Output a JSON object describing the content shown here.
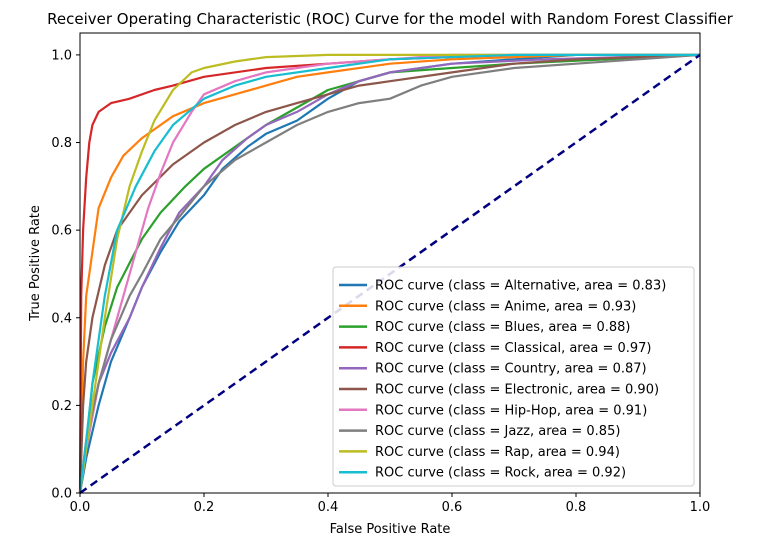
{
  "chart_data": {
    "type": "line",
    "title": "Receiver Operating Characteristic (ROC) Curve for the model with Random Forest Classifier",
    "xlabel": "False Positive Rate",
    "ylabel": "True Positive Rate",
    "xlim": [
      0.0,
      1.0
    ],
    "ylim": [
      0.0,
      1.05
    ],
    "x_ticks": [
      "0.0",
      "0.2",
      "0.4",
      "0.6",
      "0.8",
      "1.0"
    ],
    "y_ticks": [
      "0.0",
      "0.2",
      "0.4",
      "0.6",
      "0.8",
      "1.0"
    ],
    "grid": false,
    "legend_position": "lower-right",
    "diagonal": {
      "color": "#000080",
      "style": "dashed",
      "points": [
        [
          0,
          0
        ],
        [
          1,
          1
        ]
      ]
    },
    "series": [
      {
        "name": "ROC curve (class = Alternative, area = 0.83)",
        "color": "#1f77b4",
        "points": [
          [
            0,
            0
          ],
          [
            0.01,
            0.08
          ],
          [
            0.03,
            0.2
          ],
          [
            0.05,
            0.3
          ],
          [
            0.08,
            0.4
          ],
          [
            0.1,
            0.47
          ],
          [
            0.13,
            0.55
          ],
          [
            0.16,
            0.62
          ],
          [
            0.2,
            0.68
          ],
          [
            0.23,
            0.74
          ],
          [
            0.27,
            0.79
          ],
          [
            0.3,
            0.82
          ],
          [
            0.35,
            0.85
          ],
          [
            0.4,
            0.9
          ],
          [
            0.45,
            0.94
          ],
          [
            0.5,
            0.96
          ],
          [
            0.6,
            0.98
          ],
          [
            0.7,
            0.99
          ],
          [
            0.8,
            1.0
          ],
          [
            1,
            1
          ]
        ]
      },
      {
        "name": "ROC curve (class = Anime, area = 0.93)",
        "color": "#ff7f0e",
        "points": [
          [
            0,
            0
          ],
          [
            0.005,
            0.3
          ],
          [
            0.01,
            0.45
          ],
          [
            0.02,
            0.55
          ],
          [
            0.03,
            0.65
          ],
          [
            0.05,
            0.72
          ],
          [
            0.07,
            0.77
          ],
          [
            0.1,
            0.81
          ],
          [
            0.15,
            0.86
          ],
          [
            0.2,
            0.89
          ],
          [
            0.25,
            0.91
          ],
          [
            0.3,
            0.93
          ],
          [
            0.35,
            0.95
          ],
          [
            0.4,
            0.96
          ],
          [
            0.5,
            0.98
          ],
          [
            0.6,
            0.99
          ],
          [
            0.8,
            1.0
          ],
          [
            1,
            1
          ]
        ]
      },
      {
        "name": "ROC curve (class = Blues, area = 0.88)",
        "color": "#2ca02c",
        "points": [
          [
            0,
            0
          ],
          [
            0.01,
            0.1
          ],
          [
            0.02,
            0.25
          ],
          [
            0.04,
            0.38
          ],
          [
            0.06,
            0.47
          ],
          [
            0.1,
            0.58
          ],
          [
            0.13,
            0.64
          ],
          [
            0.17,
            0.7
          ],
          [
            0.2,
            0.74
          ],
          [
            0.25,
            0.79
          ],
          [
            0.3,
            0.84
          ],
          [
            0.35,
            0.88
          ],
          [
            0.4,
            0.92
          ],
          [
            0.45,
            0.94
          ],
          [
            0.5,
            0.96
          ],
          [
            0.6,
            0.97
          ],
          [
            0.7,
            0.98
          ],
          [
            0.85,
            0.99
          ],
          [
            1,
            1
          ]
        ]
      },
      {
        "name": "ROC curve (class = Classical, area = 0.97)",
        "color": "#d62728",
        "points": [
          [
            0,
            0
          ],
          [
            0.002,
            0.45
          ],
          [
            0.005,
            0.6
          ],
          [
            0.01,
            0.72
          ],
          [
            0.015,
            0.8
          ],
          [
            0.02,
            0.84
          ],
          [
            0.03,
            0.87
          ],
          [
            0.05,
            0.89
          ],
          [
            0.08,
            0.9
          ],
          [
            0.12,
            0.92
          ],
          [
            0.15,
            0.93
          ],
          [
            0.2,
            0.95
          ],
          [
            0.3,
            0.97
          ],
          [
            0.4,
            0.98
          ],
          [
            0.5,
            0.99
          ],
          [
            0.7,
            1.0
          ],
          [
            1,
            1
          ]
        ]
      },
      {
        "name": "ROC curve (class = Country, area = 0.87)",
        "color": "#9467bd",
        "points": [
          [
            0,
            0
          ],
          [
            0.01,
            0.1
          ],
          [
            0.03,
            0.25
          ],
          [
            0.05,
            0.32
          ],
          [
            0.08,
            0.4
          ],
          [
            0.1,
            0.47
          ],
          [
            0.13,
            0.56
          ],
          [
            0.16,
            0.64
          ],
          [
            0.2,
            0.7
          ],
          [
            0.23,
            0.76
          ],
          [
            0.27,
            0.81
          ],
          [
            0.3,
            0.84
          ],
          [
            0.35,
            0.87
          ],
          [
            0.4,
            0.91
          ],
          [
            0.45,
            0.94
          ],
          [
            0.5,
            0.96
          ],
          [
            0.6,
            0.98
          ],
          [
            0.75,
            0.99
          ],
          [
            1,
            1
          ]
        ]
      },
      {
        "name": "ROC curve (class = Electronic, area = 0.90)",
        "color": "#8c564b",
        "points": [
          [
            0,
            0
          ],
          [
            0.005,
            0.2
          ],
          [
            0.01,
            0.3
          ],
          [
            0.02,
            0.4
          ],
          [
            0.04,
            0.52
          ],
          [
            0.06,
            0.6
          ],
          [
            0.1,
            0.68
          ],
          [
            0.15,
            0.75
          ],
          [
            0.2,
            0.8
          ],
          [
            0.25,
            0.84
          ],
          [
            0.3,
            0.87
          ],
          [
            0.35,
            0.89
          ],
          [
            0.4,
            0.91
          ],
          [
            0.45,
            0.93
          ],
          [
            0.5,
            0.94
          ],
          [
            0.6,
            0.96
          ],
          [
            0.7,
            0.98
          ],
          [
            0.8,
            0.99
          ],
          [
            1,
            1
          ]
        ]
      },
      {
        "name": "ROC curve (class = Hip-Hop, area = 0.91)",
        "color": "#e377c2",
        "points": [
          [
            0,
            0
          ],
          [
            0.01,
            0.1
          ],
          [
            0.03,
            0.25
          ],
          [
            0.05,
            0.35
          ],
          [
            0.07,
            0.45
          ],
          [
            0.09,
            0.55
          ],
          [
            0.11,
            0.65
          ],
          [
            0.13,
            0.73
          ],
          [
            0.15,
            0.8
          ],
          [
            0.18,
            0.87
          ],
          [
            0.2,
            0.91
          ],
          [
            0.25,
            0.94
          ],
          [
            0.3,
            0.96
          ],
          [
            0.4,
            0.98
          ],
          [
            0.5,
            0.99
          ],
          [
            0.6,
            1.0
          ],
          [
            1,
            1
          ]
        ]
      },
      {
        "name": "ROC curve (class = Jazz, area = 0.85)",
        "color": "#7f7f7f",
        "points": [
          [
            0,
            0
          ],
          [
            0.01,
            0.12
          ],
          [
            0.03,
            0.25
          ],
          [
            0.05,
            0.35
          ],
          [
            0.08,
            0.45
          ],
          [
            0.1,
            0.5
          ],
          [
            0.13,
            0.58
          ],
          [
            0.16,
            0.63
          ],
          [
            0.2,
            0.7
          ],
          [
            0.25,
            0.76
          ],
          [
            0.3,
            0.8
          ],
          [
            0.35,
            0.84
          ],
          [
            0.4,
            0.87
          ],
          [
            0.45,
            0.89
          ],
          [
            0.5,
            0.9
          ],
          [
            0.55,
            0.93
          ],
          [
            0.6,
            0.95
          ],
          [
            0.7,
            0.97
          ],
          [
            0.8,
            0.98
          ],
          [
            0.9,
            0.99
          ],
          [
            1,
            1
          ]
        ]
      },
      {
        "name": "ROC curve (class = Rap, area = 0.94)",
        "color": "#bcbd22",
        "points": [
          [
            0,
            0
          ],
          [
            0.01,
            0.1
          ],
          [
            0.02,
            0.2
          ],
          [
            0.04,
            0.4
          ],
          [
            0.06,
            0.58
          ],
          [
            0.08,
            0.7
          ],
          [
            0.1,
            0.78
          ],
          [
            0.12,
            0.85
          ],
          [
            0.15,
            0.92
          ],
          [
            0.18,
            0.96
          ],
          [
            0.2,
            0.97
          ],
          [
            0.25,
            0.985
          ],
          [
            0.3,
            0.995
          ],
          [
            0.4,
            1.0
          ],
          [
            1,
            1
          ]
        ]
      },
      {
        "name": "ROC curve (class = Rock, area = 0.92)",
        "color": "#17becf",
        "points": [
          [
            0,
            0
          ],
          [
            0.01,
            0.12
          ],
          [
            0.02,
            0.25
          ],
          [
            0.04,
            0.45
          ],
          [
            0.06,
            0.6
          ],
          [
            0.09,
            0.7
          ],
          [
            0.12,
            0.78
          ],
          [
            0.15,
            0.84
          ],
          [
            0.2,
            0.9
          ],
          [
            0.25,
            0.93
          ],
          [
            0.3,
            0.95
          ],
          [
            0.4,
            0.97
          ],
          [
            0.5,
            0.99
          ],
          [
            0.7,
            1.0
          ],
          [
            1,
            1
          ]
        ]
      }
    ]
  }
}
